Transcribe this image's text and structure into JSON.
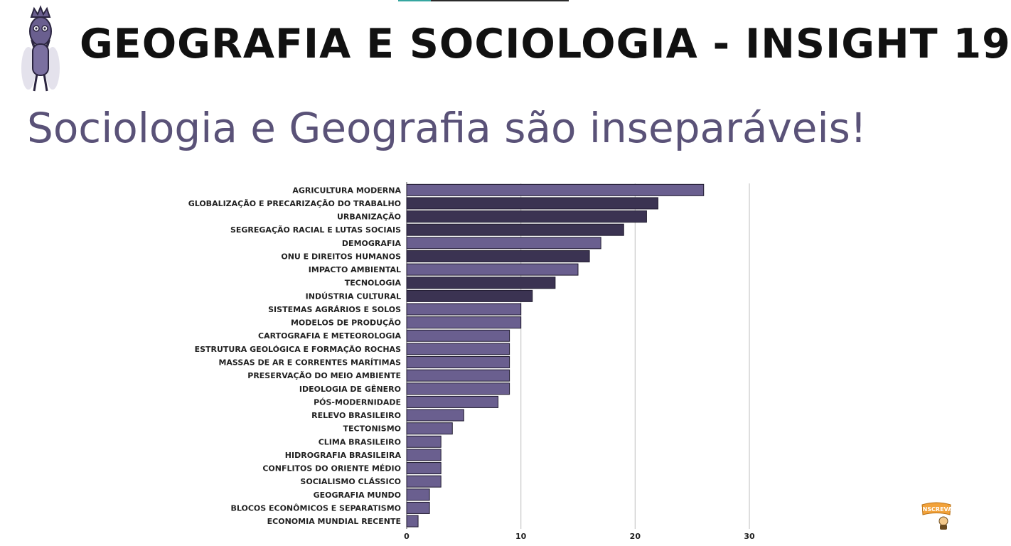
{
  "header": {
    "title": "GEOGRAFIA E SOCIOLOGIA - INSIGHT 19",
    "subtitle": "Sociologia e Geografia são inseparáveis!"
  },
  "icons": {
    "mascot": "owl-mascot-icon",
    "badge": "inscreva-subscribe-icon",
    "badge_text": "INSCREVA"
  },
  "colors": {
    "bar_light": "#6a5f8f",
    "bar_dark": "#3b3352",
    "subtitle": "#5a5278",
    "badge": "#f2a23a"
  },
  "chart_data": {
    "type": "bar",
    "orientation": "horizontal",
    "categories": [
      "AGRICULTURA MODERNA",
      "GLOBALIZAÇÃO E PRECARIZAÇÃO DO TRABALHO",
      "URBANIZAÇÃO",
      "SEGREGAÇÃO RACIAL E LUTAS SOCIAIS",
      "DEMOGRAFIA",
      "ONU E DIREITOS HUMANOS",
      "IMPACTO AMBIENTAL",
      "TECNOLOGIA",
      "INDÚSTRIA CULTURAL",
      "SISTEMAS AGRÁRIOS E SOLOS",
      "MODELOS DE PRODUÇÃO",
      "CARTOGRAFIA E METEOROLOGIA",
      "ESTRUTURA GEOLÓGICA E FORMAÇÃO ROCHAS",
      "MASSAS DE AR E CORRENTES MARÍTIMAS",
      "PRESERVAÇÃO DO MEIO AMBIENTE",
      "IDEOLOGIA DE GÊNERO",
      "PÓS-MODERNIDADE",
      "RELEVO BRASILEIRO",
      "TECTONISMO",
      "CLIMA BRASILEIRO",
      "HIDROGRAFIA BRASILEIRA",
      "CONFLITOS DO ORIENTE MÉDIO",
      "SOCIALISMO CLÁSSICO",
      "GEOGRAFIA MUNDO",
      "BLOCOS ECONÔMICOS E SEPARATISMO",
      "ECONOMIA MUNDIAL RECENTE"
    ],
    "values": [
      26,
      22,
      21,
      19,
      17,
      16,
      15,
      13,
      11,
      10,
      10,
      9,
      9,
      9,
      9,
      9,
      8,
      5,
      4,
      3,
      3,
      3,
      3,
      2,
      2,
      1
    ],
    "bar_shade": [
      "light",
      "dark",
      "dark",
      "dark",
      "light",
      "dark",
      "light",
      "dark",
      "dark",
      "light",
      "light",
      "light",
      "light",
      "light",
      "light",
      "light",
      "light",
      "light",
      "light",
      "light",
      "light",
      "light",
      "light",
      "light",
      "light",
      "light"
    ],
    "xlim": [
      0,
      30
    ],
    "xticks": [
      0,
      10,
      20,
      30
    ],
    "grid": true,
    "legend": "none"
  }
}
